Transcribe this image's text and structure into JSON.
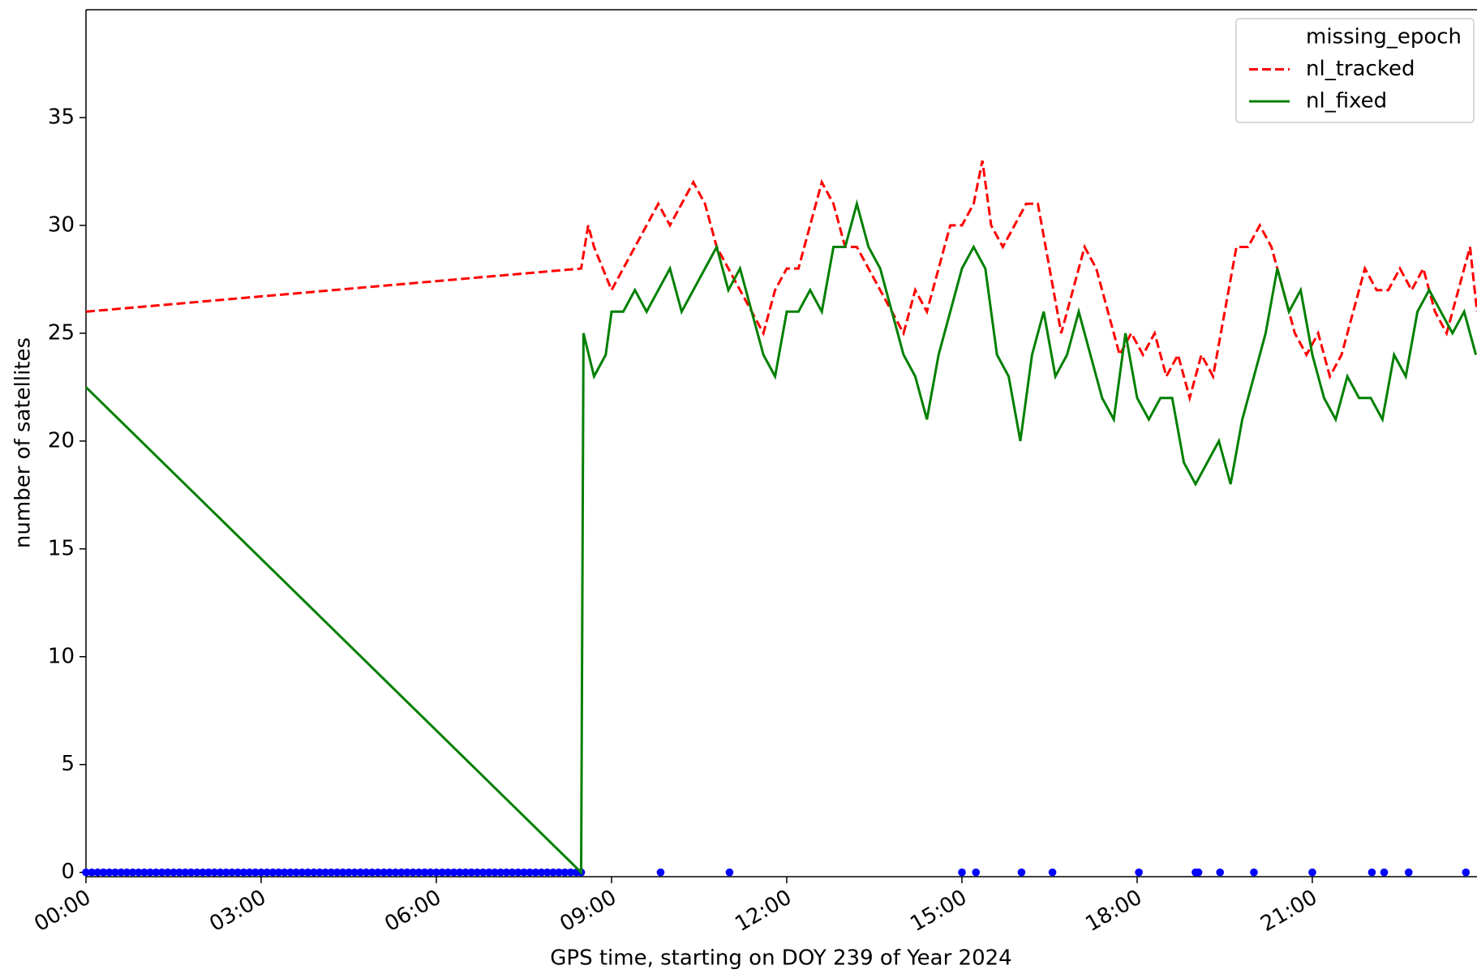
{
  "chart_data": {
    "type": "line",
    "xlabel": "GPS time, starting on DOY 239 of Year 2024",
    "ylabel": "number of satellites",
    "xlim": [
      0,
      23.82
    ],
    "ylim": [
      -0.2,
      40
    ],
    "xticks": [
      {
        "value": 0,
        "label": "00:00"
      },
      {
        "value": 3,
        "label": "03:00"
      },
      {
        "value": 6,
        "label": "06:00"
      },
      {
        "value": 9,
        "label": "09:00"
      },
      {
        "value": 12,
        "label": "12:00"
      },
      {
        "value": 15,
        "label": "15:00"
      },
      {
        "value": 18,
        "label": "18:00"
      },
      {
        "value": 21,
        "label": "21:00"
      }
    ],
    "yticks": [
      0,
      5,
      10,
      15,
      20,
      25,
      30,
      35
    ],
    "legend": "upper right",
    "series": [
      {
        "name": "missing_epoch",
        "color": "#0000ff",
        "style": "dots",
        "x": [
          0,
          0.1,
          0.2,
          0.3,
          0.4,
          0.5,
          0.6,
          0.7,
          0.8,
          0.9,
          1,
          1.1,
          1.2,
          1.3,
          1.4,
          1.5,
          1.6,
          1.7,
          1.8,
          1.9,
          2,
          2.1,
          2.2,
          2.3,
          2.4,
          2.5,
          2.6,
          2.7,
          2.8,
          2.9,
          3,
          3.1,
          3.2,
          3.3,
          3.4,
          3.5,
          3.6,
          3.7,
          3.8,
          3.9,
          4,
          4.1,
          4.2,
          4.3,
          4.4,
          4.5,
          4.6,
          4.7,
          4.8,
          4.9,
          5,
          5.1,
          5.2,
          5.3,
          5.4,
          5.5,
          5.6,
          5.7,
          5.8,
          5.9,
          6,
          6.1,
          6.2,
          6.3,
          6.4,
          6.5,
          6.6,
          6.7,
          6.8,
          6.9,
          7,
          7.1,
          7.2,
          7.3,
          7.4,
          7.5,
          7.6,
          7.7,
          7.8,
          7.9,
          8,
          8.1,
          8.2,
          8.3,
          8.4,
          8.48,
          9.84,
          11.02,
          15.0,
          15.24,
          16.02,
          16.55,
          18.03,
          19.0,
          19.05,
          19.42,
          20.0,
          21.0,
          22.02,
          22.23,
          22.65,
          23.63
        ],
        "values": [
          0,
          0,
          0,
          0,
          0,
          0,
          0,
          0,
          0,
          0,
          0,
          0,
          0,
          0,
          0,
          0,
          0,
          0,
          0,
          0,
          0,
          0,
          0,
          0,
          0,
          0,
          0,
          0,
          0,
          0,
          0,
          0,
          0,
          0,
          0,
          0,
          0,
          0,
          0,
          0,
          0,
          0,
          0,
          0,
          0,
          0,
          0,
          0,
          0,
          0,
          0,
          0,
          0,
          0,
          0,
          0,
          0,
          0,
          0,
          0,
          0,
          0,
          0,
          0,
          0,
          0,
          0,
          0,
          0,
          0,
          0,
          0,
          0,
          0,
          0,
          0,
          0,
          0,
          0,
          0,
          0,
          0,
          0,
          0,
          0,
          0,
          0,
          0,
          0,
          0,
          0,
          0,
          0,
          0,
          0,
          0,
          0,
          0,
          0,
          0,
          0,
          0
        ]
      },
      {
        "name": "nl_tracked",
        "color": "#ff0000",
        "style": "dashed",
        "x": [
          0,
          8.48,
          8.6,
          8.7,
          8.85,
          9.0,
          9.2,
          9.4,
          9.6,
          9.8,
          10.0,
          10.2,
          10.4,
          10.6,
          10.8,
          11.0,
          11.2,
          11.4,
          11.6,
          11.8,
          12.0,
          12.2,
          12.4,
          12.6,
          12.8,
          13.0,
          13.2,
          13.4,
          13.6,
          13.8,
          14.0,
          14.2,
          14.4,
          14.6,
          14.8,
          15.0,
          15.2,
          15.35,
          15.5,
          15.7,
          15.9,
          16.1,
          16.3,
          16.5,
          16.7,
          16.9,
          17.1,
          17.3,
          17.5,
          17.7,
          17.9,
          18.1,
          18.3,
          18.5,
          18.7,
          18.9,
          19.1,
          19.3,
          19.5,
          19.7,
          19.9,
          20.1,
          20.3,
          20.5,
          20.7,
          20.9,
          21.1,
          21.3,
          21.5,
          21.7,
          21.9,
          22.1,
          22.3,
          22.5,
          22.7,
          22.9,
          23.1,
          23.3,
          23.5,
          23.7,
          23.82
        ],
        "values": [
          26,
          28,
          30,
          29,
          28,
          27,
          28,
          29,
          30,
          31,
          30,
          31,
          32,
          31,
          29,
          28,
          27,
          26,
          25,
          27,
          28,
          28,
          30,
          32,
          31,
          29,
          29,
          28,
          27,
          26,
          25,
          27,
          26,
          28,
          30,
          30,
          31,
          33,
          30,
          29,
          30,
          31,
          31,
          28,
          25,
          27,
          29,
          28,
          26,
          24,
          25,
          24,
          25,
          23,
          24,
          22,
          24,
          23,
          26,
          29,
          29,
          30,
          29,
          27,
          25,
          24,
          25,
          23,
          24,
          26,
          28,
          27,
          27,
          28,
          27,
          28,
          26,
          25,
          27,
          29,
          26
        ]
      },
      {
        "name": "nl_fixed",
        "color": "#008000",
        "style": "solid",
        "x": [
          0,
          8.48,
          8.52,
          8.7,
          8.9,
          9.0,
          9.2,
          9.4,
          9.6,
          9.8,
          10.0,
          10.2,
          10.4,
          10.6,
          10.8,
          11.0,
          11.2,
          11.4,
          11.6,
          11.8,
          12.0,
          12.2,
          12.4,
          12.6,
          12.8,
          13.0,
          13.2,
          13.4,
          13.6,
          13.8,
          14.0,
          14.2,
          14.4,
          14.6,
          14.8,
          15.0,
          15.2,
          15.4,
          15.6,
          15.8,
          16.0,
          16.2,
          16.4,
          16.6,
          16.8,
          17.0,
          17.2,
          17.4,
          17.6,
          17.8,
          18.0,
          18.2,
          18.4,
          18.6,
          18.8,
          19.0,
          19.2,
          19.4,
          19.6,
          19.8,
          20.0,
          20.2,
          20.4,
          20.6,
          20.8,
          21.0,
          21.2,
          21.4,
          21.6,
          21.8,
          22.0,
          22.2,
          22.4,
          22.6,
          22.8,
          23.0,
          23.2,
          23.4,
          23.6,
          23.8
        ],
        "values": [
          22.5,
          0,
          25,
          23,
          24,
          26,
          26,
          27,
          26,
          27,
          28,
          26,
          27,
          28,
          29,
          27,
          28,
          26,
          24,
          23,
          26,
          26,
          27,
          26,
          29,
          29,
          31,
          29,
          28,
          26,
          24,
          23,
          21,
          24,
          26,
          28,
          29,
          28,
          24,
          23,
          20,
          24,
          26,
          23,
          24,
          26,
          24,
          22,
          21,
          25,
          22,
          21,
          22,
          22,
          19,
          18,
          19,
          20,
          18,
          21,
          23,
          25,
          28,
          26,
          27,
          24,
          22,
          21,
          23,
          22,
          22,
          21,
          24,
          23,
          26,
          27,
          26,
          25,
          26,
          24
        ]
      }
    ]
  }
}
